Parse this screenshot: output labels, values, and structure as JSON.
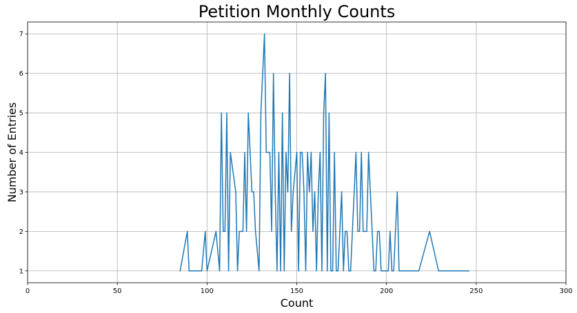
{
  "chart_data": {
    "type": "line",
    "title": "Petition Monthly Counts",
    "xlabel": "Count",
    "ylabel": "Number of Entries",
    "xlim": [
      0,
      300
    ],
    "ylim": [
      0.7,
      7.3
    ],
    "x_ticks": [
      0,
      50,
      100,
      150,
      200,
      250,
      300
    ],
    "y_ticks": [
      1,
      2,
      3,
      4,
      5,
      6,
      7
    ],
    "grid": true,
    "series": [
      {
        "color": "#1f77b4",
        "x": [
          85,
          89,
          90,
          97,
          99,
          100,
          105,
          107,
          108,
          109,
          110,
          111,
          112,
          113,
          116,
          117,
          118,
          120,
          121,
          122,
          123,
          124,
          125,
          126,
          127,
          129,
          130,
          132,
          133,
          134,
          135,
          136,
          137,
          138,
          139,
          140,
          141,
          142,
          143,
          144,
          145,
          146,
          147,
          148,
          150,
          151,
          152,
          153,
          154,
          155,
          156,
          157,
          158,
          159,
          160,
          161,
          162,
          163,
          164,
          165,
          166,
          167,
          168,
          169,
          170,
          171,
          172,
          173,
          174,
          175,
          176,
          177,
          178,
          179,
          180,
          181,
          182,
          183,
          184,
          185,
          186,
          187,
          188,
          189,
          190,
          192,
          193,
          194,
          195,
          196,
          197,
          198,
          200,
          201,
          202,
          203,
          204,
          206,
          207,
          210,
          218,
          224,
          229,
          246
        ],
        "y": [
          1,
          2,
          1,
          1,
          2,
          1,
          2,
          1,
          5,
          2,
          2,
          5,
          1,
          4,
          3,
          1,
          2,
          2,
          4,
          2,
          5,
          4,
          3,
          3,
          2,
          1,
          5,
          7,
          4,
          4,
          4,
          2,
          6,
          3,
          1,
          4,
          1,
          5,
          1,
          4,
          3,
          6,
          2,
          3,
          4,
          1,
          4,
          4,
          3,
          1,
          4,
          3,
          4,
          2,
          3,
          1,
          3,
          4,
          1,
          5,
          6,
          1,
          5,
          1,
          1,
          4,
          1,
          1,
          2,
          3,
          1,
          2,
          2,
          1,
          1,
          2,
          3,
          4,
          2,
          2,
          4,
          2,
          2,
          2,
          4,
          2,
          1,
          1,
          2,
          2,
          1,
          1,
          1,
          1,
          2,
          1,
          1,
          3,
          1,
          1,
          1,
          2,
          1,
          1
        ]
      }
    ]
  }
}
